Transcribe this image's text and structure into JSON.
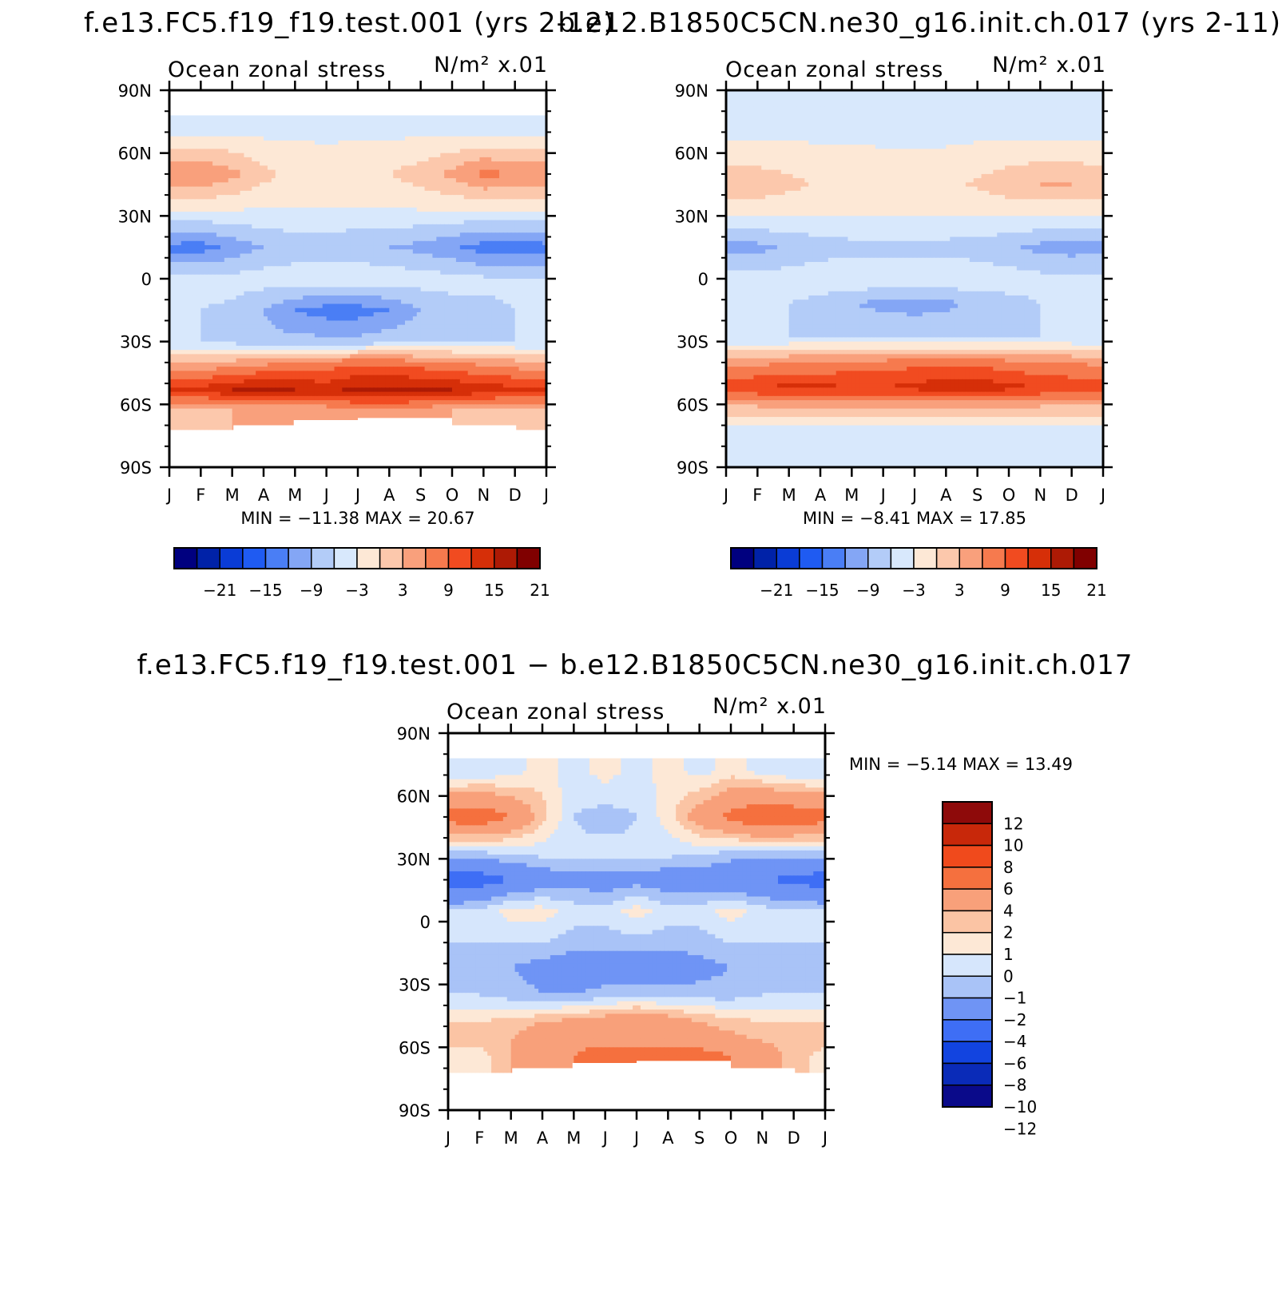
{
  "chart_data": [
    {
      "type": "heatmap",
      "title": "f.e13.FC5.f19_f19.test.001 (yrs 2-12)",
      "subtitle_left": "Ocean zonal stress",
      "subtitle_right": "N/m² x.01",
      "x": [
        "J",
        "F",
        "M",
        "A",
        "M",
        "J",
        "J",
        "A",
        "S",
        "O",
        "N",
        "D",
        "J"
      ],
      "y_ticks": [
        "90N",
        "60N",
        "30N",
        "0",
        "30S",
        "60S",
        "90S"
      ],
      "ylim": [
        -90,
        90
      ],
      "stats": "MIN = −11.38 MAX = 20.67",
      "min": -11.38,
      "max": 20.67,
      "land_mask": true,
      "bands": [
        {
          "lat": 85,
          "values": [
            null,
            null,
            null,
            null,
            null,
            null,
            null,
            null,
            null,
            null,
            null,
            null,
            null
          ]
        },
        {
          "lat": 72,
          "values": [
            -1.5,
            -1.5,
            -1.2,
            -1.2,
            -0.8,
            -0.8,
            -0.8,
            -1,
            -1.2,
            -1.5,
            -2,
            -2,
            -1.5
          ]
        },
        {
          "lat": 50,
          "values": [
            8.5,
            9,
            7,
            4,
            2,
            1.5,
            2,
            3,
            4.5,
            7,
            10,
            9,
            8.5
          ]
        },
        {
          "lat": 35,
          "values": [
            1.5,
            1.5,
            1,
            0.5,
            0.5,
            0.5,
            0.5,
            0.5,
            0.8,
            1,
            1.5,
            1.5,
            1.5
          ]
        },
        {
          "lat": 15,
          "values": [
            -10,
            -10.5,
            -8,
            -6,
            -5,
            -5,
            -5.5,
            -6,
            -7,
            -8.5,
            -10.5,
            -11,
            -10
          ]
        },
        {
          "lat": 0,
          "values": [
            -2.5,
            -2,
            -2,
            -1.5,
            -1,
            -0.5,
            -0.5,
            -1,
            -1.5,
            -2,
            -2.5,
            -2.5,
            -2.5
          ]
        },
        {
          "lat": -15,
          "values": [
            -3,
            -3,
            -3.5,
            -6,
            -9,
            -10.5,
            -10.5,
            -9,
            -6,
            -4,
            -3.5,
            -3,
            -3
          ]
        },
        {
          "lat": -30,
          "values": [
            -3,
            -3,
            -4,
            -5,
            -5,
            -5,
            -5,
            -4,
            -4,
            -3,
            -3,
            -3,
            -3
          ]
        },
        {
          "lat": -40,
          "values": [
            6,
            6,
            7,
            8,
            9,
            10,
            11,
            11,
            10,
            9,
            8,
            7,
            6
          ]
        },
        {
          "lat": -53,
          "values": [
            15,
            16,
            18,
            19,
            18,
            17,
            19,
            19,
            19,
            18,
            17,
            16,
            15
          ]
        },
        {
          "lat": -63,
          "values": [
            6,
            5,
            6,
            6,
            6,
            7,
            8,
            8,
            7,
            6,
            5,
            5,
            6
          ]
        },
        {
          "lat": -80,
          "values": [
            null,
            null,
            null,
            null,
            null,
            null,
            null,
            null,
            null,
            null,
            null,
            null,
            null
          ]
        }
      ]
    },
    {
      "type": "heatmap",
      "title": "b.e12.B1850C5CN.ne30_g16.init.ch.017 (yrs 2-11)",
      "subtitle_left": "Ocean zonal stress",
      "subtitle_right": "N/m² x.01",
      "x": [
        "J",
        "F",
        "M",
        "A",
        "M",
        "J",
        "J",
        "A",
        "S",
        "O",
        "N",
        "D",
        "J"
      ],
      "y_ticks": [
        "90N",
        "60N",
        "30N",
        "0",
        "30S",
        "60S",
        "90S"
      ],
      "ylim": [
        -90,
        90
      ],
      "stats": "MIN = −8.41 MAX = 17.85",
      "min": -8.41,
      "max": 17.85,
      "land_mask": false,
      "bands": [
        {
          "lat": 85,
          "values": [
            -1,
            -1,
            -1,
            -1,
            -1,
            -1,
            -1,
            -1,
            -1,
            -1,
            -1,
            -1,
            -1
          ]
        },
        {
          "lat": 72,
          "values": [
            -1.5,
            -1.5,
            -1.2,
            -1,
            -0.8,
            -0.8,
            -0.8,
            -1,
            -1.2,
            -1.5,
            -1.5,
            -1.5,
            -1.5
          ]
        },
        {
          "lat": 45,
          "values": [
            5,
            5,
            4,
            2.5,
            2,
            1.5,
            1.5,
            2,
            3.5,
            5,
            6,
            6,
            5
          ]
        },
        {
          "lat": 32,
          "values": [
            1,
            1,
            0.5,
            0.5,
            0.5,
            0.5,
            0.5,
            0.5,
            0.5,
            1,
            1,
            1,
            1
          ]
        },
        {
          "lat": 15,
          "values": [
            -7,
            -7,
            -5.5,
            -4.5,
            -4,
            -4,
            -4,
            -4,
            -4.5,
            -5.5,
            -7,
            -7.5,
            -7
          ]
        },
        {
          "lat": 0,
          "values": [
            -2,
            -2,
            -1.5,
            -1,
            -0.5,
            -0.5,
            -0.5,
            -0.5,
            -1,
            -1.5,
            -2,
            -2,
            -2
          ]
        },
        {
          "lat": -12,
          "values": [
            -3,
            -3,
            -3,
            -4,
            -6,
            -7,
            -7.5,
            -7,
            -5,
            -4,
            -3,
            -3,
            -3
          ]
        },
        {
          "lat": -28,
          "values": [
            -3,
            -3,
            -3,
            -3,
            -3,
            -3,
            -3,
            -3,
            -3,
            -3,
            -3,
            -3,
            -3
          ]
        },
        {
          "lat": -40,
          "values": [
            8,
            8,
            9,
            9,
            10,
            10,
            11,
            11,
            11,
            10,
            9,
            9,
            8
          ]
        },
        {
          "lat": -52,
          "values": [
            14,
            15,
            16,
            16,
            15,
            15,
            16,
            17,
            17,
            16,
            15,
            14,
            14
          ]
        },
        {
          "lat": -62,
          "values": [
            5,
            5,
            5,
            5,
            5,
            5,
            5,
            5,
            5,
            5,
            5,
            5,
            5
          ]
        },
        {
          "lat": -72,
          "values": [
            -1.5,
            -1.5,
            -1.5,
            -1.5,
            -1.5,
            -1.5,
            -1.5,
            -1.5,
            -1.5,
            -1.5,
            -1.5,
            -1.5,
            -1.5
          ]
        },
        {
          "lat": -78,
          "values": [
            -0.5,
            -0.5,
            -0.5,
            -0.5,
            -0.5,
            -0.5,
            -0.5,
            -0.5,
            -0.5,
            -0.5,
            -0.5,
            -0.5,
            -0.5
          ]
        },
        {
          "lat": -86,
          "values": [
            -1.5,
            -1.5,
            -1.5,
            -1.5,
            -1.5,
            -1.5,
            -1.5,
            -1.5,
            -1.5,
            -1.5,
            -1.5,
            -1.5,
            -1.5
          ]
        }
      ]
    },
    {
      "type": "heatmap",
      "title": "f.e13.FC5.f19_f19.test.001 − b.e12.B1850C5CN.ne30_g16.init.ch.017",
      "subtitle_left": "Ocean zonal stress",
      "subtitle_right": "N/m² x.01",
      "x": [
        "J",
        "F",
        "M",
        "A",
        "M",
        "J",
        "J",
        "A",
        "S",
        "O",
        "N",
        "D",
        "J"
      ],
      "y_ticks": [
        "90N",
        "60N",
        "30N",
        "0",
        "30S",
        "60S",
        "90S"
      ],
      "ylim": [
        -90,
        90
      ],
      "stats": "MIN = −5.14 MAX = 13.49",
      "min": -5.14,
      "max": 13.49,
      "land_mask": true,
      "bands": [
        {
          "lat": 85,
          "values": [
            null,
            null,
            null,
            null,
            null,
            null,
            null,
            null,
            null,
            null,
            null,
            null,
            null
          ]
        },
        {
          "lat": 72,
          "values": [
            -1,
            -1,
            -0.5,
            0.5,
            -0.5,
            0.5,
            -0.5,
            0.5,
            -0.5,
            0.5,
            -0.5,
            -1,
            -1
          ]
        },
        {
          "lat": 50,
          "values": [
            5,
            5.5,
            4,
            1.5,
            -1,
            -1.5,
            -1,
            0.5,
            3,
            4.5,
            6,
            5.5,
            5
          ]
        },
        {
          "lat": 32,
          "values": [
            -1.5,
            -1.5,
            -1,
            -0.8,
            -0.8,
            -0.5,
            -0.8,
            -0.8,
            -1,
            -1.5,
            -1.5,
            -1.5,
            -1.5
          ]
        },
        {
          "lat": 20,
          "values": [
            -5,
            -5,
            -4,
            -3,
            -2.5,
            -3,
            -2.5,
            -3,
            -3,
            -3.5,
            -4,
            -4.5,
            -5
          ]
        },
        {
          "lat": 5,
          "values": [
            -1,
            -0.8,
            0.5,
            0.5,
            -0.5,
            -0.5,
            0.5,
            -0.5,
            -0.5,
            0.5,
            -0.5,
            -0.8,
            -1
          ]
        },
        {
          "lat": -10,
          "values": [
            -1,
            -1,
            -1,
            -1,
            -1.5,
            -1.5,
            -1.5,
            -1.5,
            -1.5,
            -1,
            -1,
            -1,
            -1
          ]
        },
        {
          "lat": -22,
          "values": [
            -1.5,
            -1.5,
            -2,
            -2.5,
            -3,
            -3,
            -3,
            -3,
            -2.5,
            -2,
            -1.5,
            -1.5,
            -1.5
          ]
        },
        {
          "lat": -35,
          "values": [
            -1,
            -1,
            -1.5,
            -2,
            -2,
            -1.5,
            -1.5,
            -1.5,
            -1.5,
            -1.5,
            -1,
            -1,
            -1
          ]
        },
        {
          "lat": -48,
          "values": [
            1,
            1,
            1.5,
            2,
            2.5,
            3,
            4,
            3,
            2,
            1.5,
            1,
            1,
            1
          ]
        },
        {
          "lat": -57,
          "values": [
            1.5,
            1.5,
            2,
            3,
            3.5,
            3.5,
            3.5,
            3.5,
            3,
            2.5,
            2,
            1.5,
            1.5
          ]
        },
        {
          "lat": -64,
          "values": [
            0.5,
            0.5,
            2,
            3,
            4,
            5,
            5,
            5,
            5,
            4,
            3,
            1.5,
            0.5
          ]
        },
        {
          "lat": -80,
          "values": [
            null,
            null,
            null,
            null,
            null,
            null,
            null,
            null,
            null,
            null,
            null,
            null,
            null
          ]
        }
      ]
    }
  ],
  "colorbar_top": {
    "labels": [
      "−21",
      "−15",
      "−9",
      "−3",
      "3",
      "9",
      "15",
      "21"
    ],
    "levels": [
      -24,
      -21,
      -18,
      -15,
      -12,
      -9,
      -6,
      -3,
      0,
      3,
      6,
      9,
      12,
      15,
      18,
      21,
      24
    ]
  },
  "colorbar_diff": {
    "labels": [
      "12",
      "10",
      "8",
      "6",
      "4",
      "2",
      "1",
      "0",
      "−1",
      "−2",
      "−4",
      "−6",
      "−8",
      "−10",
      "−12"
    ],
    "levels": [
      -12,
      -10,
      -8,
      -6,
      -4,
      -2,
      -1,
      0,
      1,
      2,
      4,
      6,
      8,
      10,
      12
    ]
  },
  "colors": {
    "palette": [
      "#00007f",
      "#0022a8",
      "#0a3cd6",
      "#1f5bf2",
      "#4a7ef5",
      "#84a6f5",
      "#b3ccf8",
      "#d8e8fc",
      "#fde8d6",
      "#fcc8ac",
      "#f9a07c",
      "#f67a4e",
      "#f14b20",
      "#d62f08",
      "#ad1a05",
      "#800000"
    ],
    "land": "#ffffff"
  }
}
